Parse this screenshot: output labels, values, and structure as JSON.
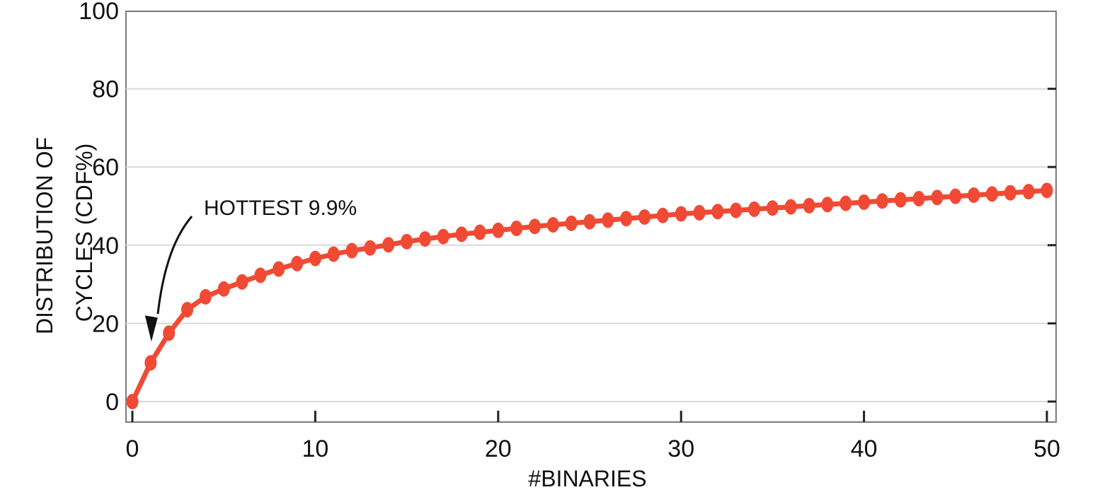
{
  "chart_data": {
    "type": "line",
    "title": "",
    "xlabel": "#BINARIES",
    "ylabel_lines": [
      "DISTRIBUTION OF",
      "CYCLES (CDF%)"
    ],
    "xlim": [
      0,
      50
    ],
    "ylim": [
      0,
      100
    ],
    "x_ticks": [
      0,
      10,
      20,
      30,
      40,
      50
    ],
    "x_tick_labels": [
      "0",
      "10",
      "20",
      "30",
      "40",
      "50"
    ],
    "y_ticks": [
      0,
      20,
      40,
      60,
      80,
      100
    ],
    "y_tick_labels": [
      "0",
      "20",
      "40",
      "60",
      "80",
      "100"
    ],
    "grid": true,
    "legend": "none",
    "series": [
      {
        "x": [
          0,
          1,
          2,
          3,
          4,
          5,
          6,
          7,
          8,
          9,
          10,
          11,
          12,
          13,
          14,
          15,
          16,
          17,
          18,
          19,
          20,
          21,
          22,
          23,
          24,
          25,
          26,
          27,
          28,
          29,
          30,
          31,
          32,
          33,
          34,
          35,
          36,
          37,
          38,
          39,
          40,
          41,
          42,
          43,
          44,
          45,
          46,
          47,
          48,
          49,
          50
        ],
        "values": [
          0,
          9.9,
          17.5,
          23.5,
          26.8,
          28.8,
          30.6,
          32.3,
          33.9,
          35.3,
          36.6,
          37.7,
          38.6,
          39.3,
          40.1,
          40.9,
          41.6,
          42.2,
          42.8,
          43.3,
          43.8,
          44.3,
          44.8,
          45.2,
          45.6,
          46.0,
          46.4,
          46.8,
          47.2,
          47.6,
          48.0,
          48.3,
          48.6,
          48.9,
          49.2,
          49.5,
          49.8,
          50.1,
          50.4,
          50.7,
          51.0,
          51.3,
          51.6,
          51.9,
          52.2,
          52.5,
          52.8,
          53.1,
          53.4,
          53.7,
          54.0
        ]
      }
    ],
    "annotations": [
      {
        "text": "HOTTEST 9.9%",
        "points_to": {
          "x": 1,
          "y": 9.9
        }
      }
    ],
    "colors": {
      "series": "#f04a35",
      "grid": "#d9d9d9",
      "axes": "#7a7a7a",
      "text": "#111111",
      "arrow": "#111111"
    }
  }
}
